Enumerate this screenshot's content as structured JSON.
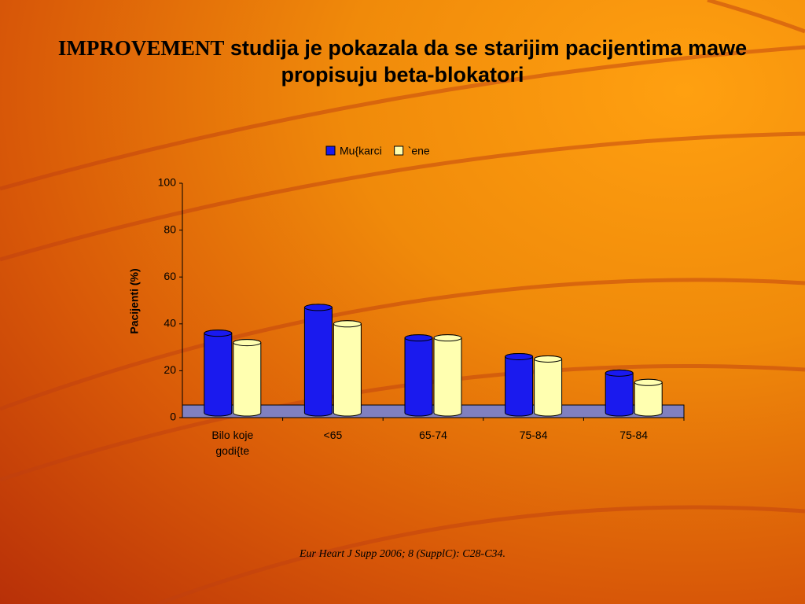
{
  "slide": {
    "title_lead": "IMPROVEMENT",
    "title": "studija je pokazala da se starijim pacijentima mawe propisuju beta-blokatori",
    "citation": "Eur Heart J Supp 2006; 8 (SupplC): C28-C34."
  },
  "chart_data": {
    "type": "bar",
    "y_label": "Pacijenti (%)",
    "categories": [
      "Bilo koje godi{te",
      "<65",
      "65-74",
      "75-84",
      "75-84"
    ],
    "series": [
      {
        "name": "Mu{karci",
        "color": "#1a1aee",
        "values": [
          34,
          45,
          32,
          24,
          17
        ]
      },
      {
        "name": "`ene",
        "color": "#ffffb0",
        "values": [
          30,
          38,
          32,
          23,
          13
        ]
      }
    ],
    "ylim": [
      0,
      100
    ],
    "yticks": [
      0,
      20,
      40,
      60,
      80,
      100
    ],
    "legend": "top"
  }
}
